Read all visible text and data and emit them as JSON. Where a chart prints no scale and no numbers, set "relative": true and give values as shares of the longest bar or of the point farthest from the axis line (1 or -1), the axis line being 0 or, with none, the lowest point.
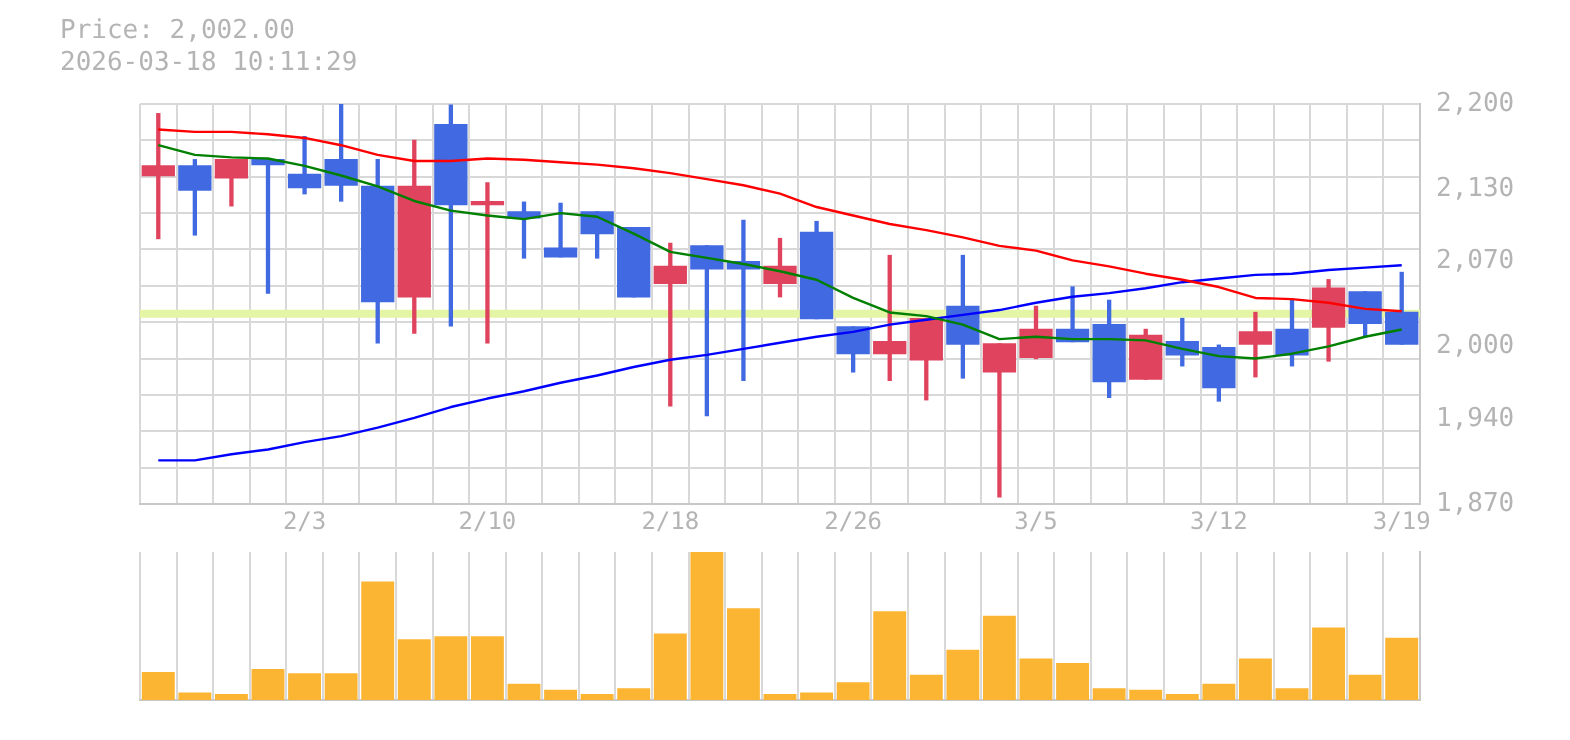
{
  "chart_data": [
    {
      "type": "candlestick",
      "title": "Price: 2,002.00",
      "subtitle": "2026-03-18 10:11:29",
      "categories": [
        null,
        null,
        null,
        null,
        "2/3",
        null,
        null,
        null,
        null,
        "2/10",
        null,
        null,
        null,
        null,
        "2/18",
        null,
        null,
        null,
        null,
        "2/26",
        null,
        null,
        null,
        null,
        "3/5",
        null,
        null,
        null,
        null,
        "3/12",
        null,
        null,
        null,
        null,
        "3/19"
      ],
      "ohlc": [
        [
          2141,
          2192,
          2089,
          2149
        ],
        [
          2149,
          2154,
          2092,
          2129
        ],
        [
          2139,
          2154,
          2116,
          2154
        ],
        [
          2154,
          2154,
          2044,
          2150
        ],
        [
          2142,
          2173,
          2126,
          2131
        ],
        [
          2154,
          2200,
          2120,
          2133
        ],
        [
          2132,
          2154,
          2003,
          2037
        ],
        [
          2041,
          2170,
          2011,
          2132
        ],
        [
          2183,
          2199,
          2017,
          2117
        ],
        [
          2117,
          2135,
          2003,
          2118
        ],
        [
          2111,
          2119,
          2073,
          2106
        ],
        [
          2081,
          2118,
          2074,
          2074
        ],
        [
          2111,
          2111,
          2073,
          2093
        ],
        [
          2098,
          2098,
          2041,
          2041
        ],
        [
          2052,
          2085,
          1951,
          2066
        ],
        [
          2083,
          2083,
          1943,
          2064
        ],
        [
          2070,
          2104,
          1972,
          2064
        ],
        [
          2052,
          2089,
          2041,
          2066
        ],
        [
          2094,
          2103,
          2023,
          2023
        ],
        [
          2016,
          2016,
          1979,
          1994
        ],
        [
          1994,
          2075,
          1972,
          2004
        ],
        [
          1989,
          2023,
          1956,
          2023
        ],
        [
          2033,
          2075,
          1974,
          2002
        ],
        [
          1979,
          2002,
          1876,
          2002
        ],
        [
          1991,
          2033,
          1990,
          2014
        ],
        [
          2014,
          2049,
          2004,
          2004
        ],
        [
          2018,
          2038,
          1958,
          1971
        ],
        [
          1973,
          2014,
          1973,
          2009
        ],
        [
          2004,
          2023,
          1984,
          1993
        ],
        [
          1999,
          2001,
          1955,
          1966
        ],
        [
          2002,
          2028,
          1975,
          2012
        ],
        [
          2014,
          2038,
          1984,
          1993
        ],
        [
          2016,
          2055,
          1988,
          2048
        ],
        [
          2045,
          2045,
          2008,
          2019
        ],
        [
          2028,
          2061,
          2002,
          2002
        ]
      ],
      "colors": [
        "#e0435e",
        "#4169e1",
        "#e0435e",
        "#4169e1",
        "#4169e1",
        "#4169e1",
        "#4169e1",
        "#e0435e",
        "#4169e1",
        "#e0435e",
        "#4169e1",
        "#4169e1",
        "#4169e1",
        "#4169e1",
        "#e0435e",
        "#4169e1",
        "#4169e1",
        "#e0435e",
        "#4169e1",
        "#4169e1",
        "#e0435e",
        "#e0435e",
        "#4169e1",
        "#e0435e",
        "#e0435e",
        "#4169e1",
        "#4169e1",
        "#e0435e",
        "#4169e1",
        "#4169e1",
        "#e0435e",
        "#4169e1",
        "#e0435e",
        "#4169e1",
        "#4169e1"
      ],
      "series": [
        {
          "type": "line",
          "color": "#ff0000",
          "values": [
            2179,
            2177,
            2177,
            2175,
            2172,
            2166,
            2158,
            2153,
            2153,
            2155,
            2154,
            2152,
            2150,
            2147,
            2143,
            2138,
            2133,
            2126,
            2115,
            2108,
            2101,
            2096,
            2090,
            2083,
            2079,
            2071,
            2066,
            2060,
            2055,
            2049,
            2040,
            2039,
            2036,
            2031,
            2029
          ]
        },
        {
          "type": "line",
          "color": "#008000",
          "values": [
            2166,
            2158,
            2156,
            2155,
            2149,
            2141,
            2132,
            2120,
            2112,
            2108,
            2105,
            2110,
            2107,
            2093,
            2078,
            2073,
            2068,
            2062,
            2055,
            2040,
            2028,
            2025,
            2018,
            2006,
            2008,
            2006,
            2006,
            2005,
            1998,
            1992,
            1990,
            1994,
            2000,
            2008,
            2014
          ]
        },
        {
          "type": "line",
          "color": "#0000ff",
          "values": [
            1906,
            1906,
            1911,
            1915,
            1921,
            1926,
            1933,
            1941,
            1950,
            1957,
            1963,
            1970,
            1976,
            1983,
            1989,
            1993,
            1998,
            2003,
            2008,
            2012,
            2018,
            2022,
            2026,
            2030,
            2036,
            2041,
            2044,
            2048,
            2053,
            2056,
            2059,
            2060,
            2063,
            2065,
            2067
          ]
        }
      ],
      "ylim": [
        1870,
        2200
      ],
      "yticks": [
        {
          "value": 2200,
          "label": "2,200"
        },
        {
          "value": 2170,
          "label": null
        },
        {
          "value": 2140,
          "label": null
        },
        {
          "value": 2130,
          "label": "2,130"
        },
        {
          "value": 2110,
          "label": null
        },
        {
          "value": 2080,
          "label": null
        },
        {
          "value": 2070,
          "label": "2,070"
        },
        {
          "value": 2050,
          "label": null
        },
        {
          "value": 2020,
          "label": null
        },
        {
          "value": 2000,
          "label": "2,000"
        },
        {
          "value": 1990,
          "label": null
        },
        {
          "value": 1960,
          "label": null
        },
        {
          "value": 1940,
          "label": "1,940"
        },
        {
          "value": 1930,
          "label": null
        },
        {
          "value": 1900,
          "label": null
        },
        {
          "value": 1870,
          "label": "1,870"
        }
      ],
      "grid": true,
      "ref_lines": [
        {
          "axis": "y",
          "value": 2027,
          "color": "#e4f5a6"
        }
      ]
    },
    {
      "type": "bar",
      "relative": true,
      "color": "#fbb533",
      "grid": "x",
      "categories": [
        null,
        null,
        null,
        null,
        null,
        null,
        null,
        null,
        null,
        null,
        null,
        null,
        null,
        null,
        null,
        null,
        null,
        null,
        null,
        null,
        null,
        null,
        null,
        null,
        null,
        null,
        null,
        null,
        null,
        null,
        null,
        null,
        null,
        null,
        null
      ],
      "values": [
        0.19,
        0.05,
        0.04,
        0.21,
        0.18,
        0.18,
        0.8,
        0.41,
        0.43,
        0.43,
        0.11,
        0.07,
        0.04,
        0.08,
        0.45,
        1,
        0.62,
        0.04,
        0.05,
        0.12,
        0.6,
        0.17,
        0.34,
        0.57,
        0.28,
        0.25,
        0.08,
        0.07,
        0.04,
        0.11,
        0.28,
        0.08,
        0.49,
        0.17,
        0.42
      ]
    }
  ]
}
